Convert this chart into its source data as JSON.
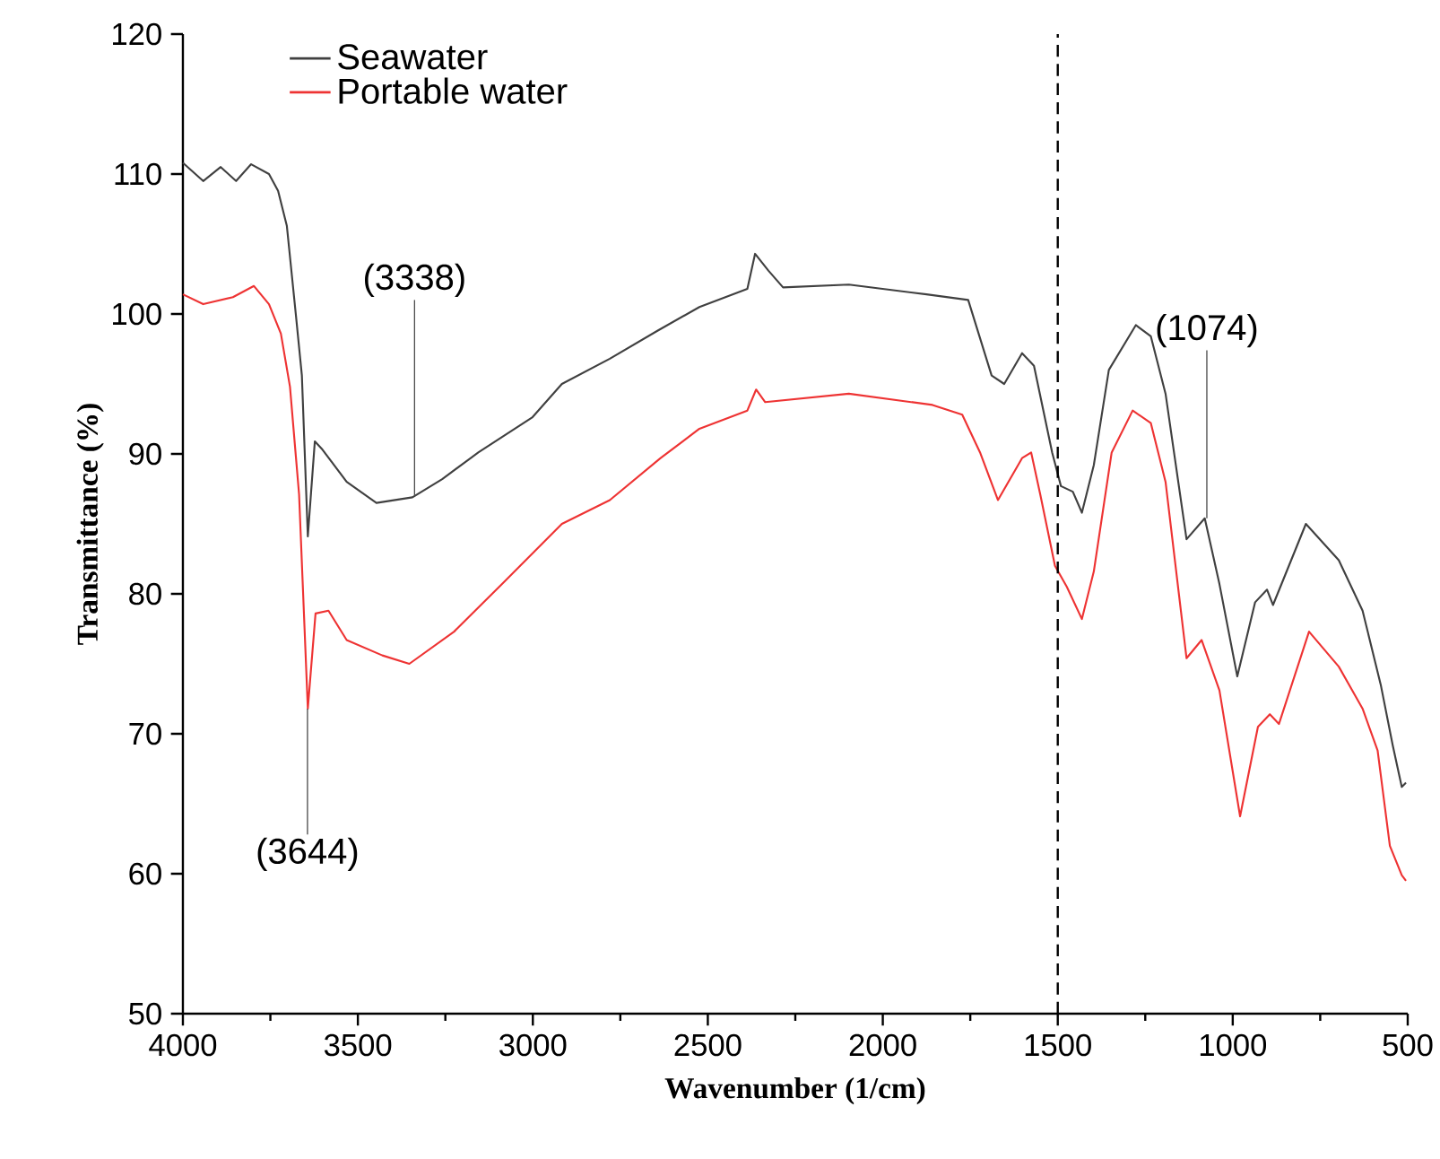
{
  "chart_data": {
    "type": "line",
    "xlabel": "Wavenumber (1/cm)",
    "ylabel": "Transmittance (%)",
    "xlim": [
      4000,
      500
    ],
    "xticks": [
      4000,
      3500,
      3000,
      2500,
      2000,
      1500,
      1000,
      500
    ],
    "ylim": [
      50,
      120
    ],
    "yticks": [
      50,
      60,
      70,
      80,
      90,
      100,
      110,
      120
    ],
    "legend": "top left",
    "marker": "none",
    "line_style": "solid",
    "series": [
      {
        "name": "Seawater",
        "color": "#404040",
        "x": [
          4000,
          3942,
          3892,
          3848,
          3805,
          3754,
          3728,
          3703,
          3677,
          3660,
          3643,
          3623,
          3601,
          3532,
          3447,
          3344,
          3259,
          3156,
          3002,
          2917,
          2780,
          2644,
          2524,
          2387,
          2365,
          2327,
          2285,
          2097,
          1875,
          1756,
          1689,
          1653,
          1602,
          1568,
          1516,
          1491,
          1457,
          1431,
          1397,
          1354,
          1277,
          1234,
          1192,
          1132,
          1080,
          1038,
          987,
          936,
          902,
          885,
          791,
          697,
          629,
          577,
          543,
          517,
          505
        ],
        "values": [
          110.8,
          109.5,
          110.5,
          109.5,
          110.7,
          110,
          108.8,
          106.3,
          99.9,
          95.6,
          84.1,
          90.9,
          90.3,
          88.0,
          86.5,
          86.9,
          88.2,
          90.1,
          92.6,
          95.0,
          96.8,
          98.8,
          100.5,
          101.8,
          104.3,
          103.1,
          101.9,
          102.1,
          101.4,
          101.0,
          95.6,
          95.0,
          97.2,
          96.3,
          90.1,
          87.7,
          87.3,
          85.8,
          89.2,
          96.0,
          99.2,
          98.4,
          94.3,
          83.9,
          85.4,
          80.7,
          74.1,
          79.4,
          80.3,
          79.2,
          85.0,
          82.4,
          78.8,
          73.5,
          69.2,
          66.2,
          66.5
        ]
      },
      {
        "name": "Portable water",
        "color": "#ee3333",
        "x": [
          4000,
          3942,
          3857,
          3797,
          3754,
          3720,
          3694,
          3668,
          3643,
          3621,
          3584,
          3532,
          3430,
          3353,
          3225,
          3088,
          2917,
          2780,
          2635,
          2524,
          2387,
          2362,
          2336,
          2097,
          1858,
          1773,
          1722,
          1671,
          1602,
          1576,
          1550,
          1508,
          1474,
          1431,
          1397,
          1346,
          1286,
          1234,
          1192,
          1132,
          1089,
          1038,
          979,
          928,
          894,
          868,
          782,
          697,
          629,
          586,
          551,
          517,
          505
        ],
        "values": [
          101.4,
          100.7,
          101.2,
          102.0,
          100.7,
          98.6,
          94.8,
          87.1,
          71.8,
          78.6,
          78.8,
          76.7,
          75.6,
          75.0,
          77.3,
          80.7,
          85.0,
          86.7,
          89.7,
          91.8,
          93.1,
          94.6,
          93.7,
          94.3,
          93.5,
          92.8,
          90.1,
          86.7,
          89.7,
          90.1,
          87.1,
          82.0,
          80.5,
          78.2,
          81.6,
          90.1,
          93.1,
          92.2,
          88.0,
          75.4,
          76.7,
          73.1,
          64.1,
          70.5,
          71.4,
          70.7,
          77.3,
          74.8,
          71.8,
          68.8,
          62.0,
          59.9,
          59.5
        ]
      }
    ],
    "ref_lines": [
      {
        "axis": "x",
        "value": 1500,
        "color": "#000000",
        "line_style": "dashed"
      }
    ],
    "annotations": [
      {
        "text": "(3338)",
        "x": 3338,
        "y": 87
      },
      {
        "text": "(3644)",
        "x": 3644,
        "y": 71.8
      },
      {
        "text": "(1074)",
        "x": 1074,
        "y": 85.4
      }
    ]
  }
}
